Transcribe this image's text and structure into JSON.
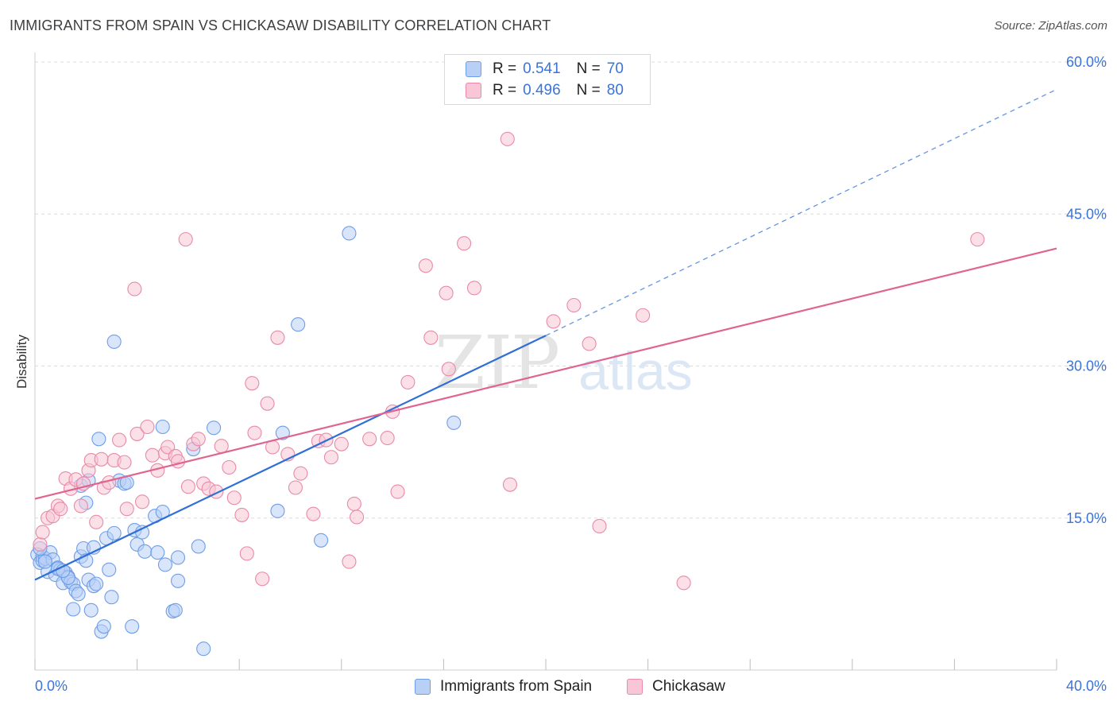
{
  "title": "IMMIGRANTS FROM SPAIN VS CHICKASAW DISABILITY CORRELATION CHART",
  "source": "Source: ZipAtlas.com",
  "watermark": {
    "zip": "ZIP",
    "atlas": "atlas"
  },
  "legend": {
    "rows": [
      {
        "r_label": "R =",
        "r_value": "0.541",
        "n_label": "N =",
        "n_value": "70",
        "color": "#b8d0f5",
        "border": "#6f9ee8"
      },
      {
        "r_label": "R =",
        "r_value": "0.496",
        "n_label": "N =",
        "n_value": "80",
        "color": "#f8c6d6",
        "border": "#e88aa8"
      }
    ]
  },
  "bottom_legend": [
    {
      "label": "Immigrants from Spain",
      "color": "#b8d0f5",
      "border": "#6f9ee8"
    },
    {
      "label": "Chickasaw",
      "color": "#f8c6d6",
      "border": "#e88aa8"
    }
  ],
  "chart_data": {
    "type": "scatter",
    "xlabel": "",
    "ylabel": "Disability",
    "xlim": [
      0,
      40
    ],
    "ylim": [
      0,
      60
    ],
    "x_tick_labels": [
      "0.0%",
      "40.0%"
    ],
    "y_tick_labels": [
      "15.0%",
      "30.0%",
      "45.0%",
      "60.0%"
    ],
    "y_ticks": [
      15,
      30,
      45,
      60
    ],
    "grid": true,
    "series": [
      {
        "name": "Immigrants from Spain",
        "color": "#6f9ee8",
        "fill": "#b8d0f5",
        "line_color": "#2f6fd6",
        "trend": {
          "x0": 0,
          "y0": 8.9,
          "x1": 20,
          "y1": 33.0,
          "dash_to": [
            40,
            57.3
          ]
        },
        "points": [
          [
            0.1,
            11.4
          ],
          [
            0.2,
            10.6
          ],
          [
            0.3,
            11.2
          ],
          [
            0.3,
            10.8
          ],
          [
            0.4,
            11.0
          ],
          [
            0.5,
            9.7
          ],
          [
            0.6,
            11.6
          ],
          [
            0.7,
            10.9
          ],
          [
            0.8,
            9.4
          ],
          [
            0.9,
            10.1
          ],
          [
            1.0,
            9.9
          ],
          [
            1.1,
            8.6
          ],
          [
            1.2,
            9.6
          ],
          [
            1.3,
            9.2
          ],
          [
            1.4,
            8.7
          ],
          [
            1.5,
            8.5
          ],
          [
            1.5,
            6.0
          ],
          [
            1.6,
            7.8
          ],
          [
            1.7,
            7.5
          ],
          [
            1.8,
            18.2
          ],
          [
            1.8,
            11.2
          ],
          [
            1.9,
            12.0
          ],
          [
            2.0,
            16.5
          ],
          [
            2.1,
            8.9
          ],
          [
            2.1,
            18.7
          ],
          [
            2.2,
            5.9
          ],
          [
            2.3,
            8.3
          ],
          [
            2.3,
            12.1
          ],
          [
            2.4,
            8.5
          ],
          [
            2.5,
            22.8
          ],
          [
            2.6,
            3.8
          ],
          [
            2.7,
            4.3
          ],
          [
            2.8,
            13.0
          ],
          [
            2.9,
            9.9
          ],
          [
            3.0,
            7.2
          ],
          [
            3.1,
            13.5
          ],
          [
            3.1,
            32.4
          ],
          [
            3.3,
            18.7
          ],
          [
            3.5,
            18.4
          ],
          [
            3.8,
            4.3
          ],
          [
            3.9,
            13.8
          ],
          [
            4.0,
            12.4
          ],
          [
            4.2,
            13.6
          ],
          [
            4.3,
            11.7
          ],
          [
            4.7,
            15.2
          ],
          [
            5.0,
            15.6
          ],
          [
            5.0,
            24.0
          ],
          [
            5.1,
            10.4
          ],
          [
            5.4,
            5.8
          ],
          [
            5.5,
            5.9
          ],
          [
            5.6,
            11.1
          ],
          [
            5.6,
            8.8
          ],
          [
            6.2,
            21.8
          ],
          [
            6.4,
            12.2
          ],
          [
            6.6,
            2.1
          ],
          [
            7.0,
            23.9
          ],
          [
            9.5,
            15.7
          ],
          [
            9.7,
            23.4
          ],
          [
            10.3,
            34.1
          ],
          [
            11.2,
            12.8
          ],
          [
            12.3,
            43.1
          ],
          [
            16.4,
            24.4
          ],
          [
            0.2,
            12.0
          ],
          [
            0.4,
            10.7
          ],
          [
            0.9,
            10.0
          ],
          [
            1.3,
            9.1
          ],
          [
            2.0,
            10.8
          ],
          [
            3.6,
            18.5
          ],
          [
            4.8,
            11.6
          ],
          [
            1.1,
            9.8
          ]
        ]
      },
      {
        "name": "Chickasaw",
        "color": "#e88aa8",
        "fill": "#f8c6d6",
        "line_color": "#e0648f",
        "trend": {
          "x0": 0,
          "y0": 16.9,
          "x1": 40,
          "y1": 41.6
        },
        "points": [
          [
            0.2,
            12.4
          ],
          [
            0.3,
            13.6
          ],
          [
            0.5,
            15.0
          ],
          [
            0.7,
            15.2
          ],
          [
            0.9,
            16.2
          ],
          [
            1.0,
            15.9
          ],
          [
            1.2,
            18.9
          ],
          [
            1.4,
            17.9
          ],
          [
            1.6,
            18.8
          ],
          [
            1.8,
            16.2
          ],
          [
            1.9,
            18.4
          ],
          [
            2.1,
            19.7
          ],
          [
            2.2,
            20.7
          ],
          [
            2.4,
            14.6
          ],
          [
            2.6,
            20.8
          ],
          [
            2.7,
            18.0
          ],
          [
            2.9,
            18.5
          ],
          [
            3.1,
            20.7
          ],
          [
            3.3,
            22.7
          ],
          [
            3.5,
            20.5
          ],
          [
            3.6,
            15.9
          ],
          [
            3.9,
            37.6
          ],
          [
            4.0,
            23.3
          ],
          [
            4.2,
            16.6
          ],
          [
            4.4,
            24.0
          ],
          [
            4.6,
            21.2
          ],
          [
            4.8,
            19.7
          ],
          [
            5.1,
            21.4
          ],
          [
            5.2,
            22.0
          ],
          [
            5.5,
            21.1
          ],
          [
            5.6,
            20.6
          ],
          [
            5.9,
            42.5
          ],
          [
            6.0,
            18.1
          ],
          [
            6.2,
            22.3
          ],
          [
            6.4,
            22.8
          ],
          [
            6.6,
            18.4
          ],
          [
            6.8,
            17.9
          ],
          [
            7.1,
            17.6
          ],
          [
            7.3,
            22.1
          ],
          [
            7.6,
            20.0
          ],
          [
            7.8,
            17.0
          ],
          [
            8.1,
            15.3
          ],
          [
            8.3,
            11.5
          ],
          [
            8.5,
            28.3
          ],
          [
            8.6,
            23.4
          ],
          [
            8.9,
            9.0
          ],
          [
            9.1,
            26.3
          ],
          [
            9.3,
            22.0
          ],
          [
            9.5,
            32.8
          ],
          [
            9.9,
            21.3
          ],
          [
            10.2,
            18.0
          ],
          [
            10.4,
            19.4
          ],
          [
            10.9,
            15.4
          ],
          [
            11.1,
            22.6
          ],
          [
            11.4,
            22.7
          ],
          [
            11.6,
            21.0
          ],
          [
            12.0,
            22.3
          ],
          [
            12.3,
            10.7
          ],
          [
            12.5,
            16.4
          ],
          [
            12.6,
            15.1
          ],
          [
            13.1,
            22.8
          ],
          [
            13.8,
            22.9
          ],
          [
            14.0,
            25.5
          ],
          [
            14.2,
            17.6
          ],
          [
            14.6,
            28.4
          ],
          [
            15.3,
            39.9
          ],
          [
            15.5,
            32.8
          ],
          [
            16.1,
            37.2
          ],
          [
            16.2,
            29.7
          ],
          [
            16.8,
            42.1
          ],
          [
            17.2,
            37.7
          ],
          [
            18.5,
            52.4
          ],
          [
            18.6,
            18.3
          ],
          [
            20.3,
            34.4
          ],
          [
            21.1,
            36.0
          ],
          [
            21.7,
            32.2
          ],
          [
            22.1,
            14.2
          ],
          [
            23.8,
            35.0
          ],
          [
            25.4,
            8.6
          ],
          [
            36.9,
            42.5
          ]
        ]
      }
    ]
  }
}
